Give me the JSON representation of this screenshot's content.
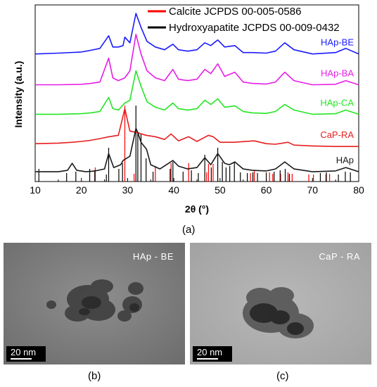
{
  "chart_data": {
    "type": "line",
    "xlabel": "2θ (°)",
    "ylabel": "Intensity (a.u.)",
    "xlim": [
      10,
      80
    ],
    "x_ticks": [
      "10",
      "20",
      "30",
      "40",
      "50",
      "60",
      "70",
      "80"
    ],
    "legend": {
      "placement": "top-right",
      "entries": [
        {
          "label": "Calcite JCPDS 00-005-0586",
          "color": "#ff0000"
        },
        {
          "label": "Hydroxyapatite JCPDS 00-009-0432",
          "color": "#000000"
        }
      ]
    },
    "series": [
      {
        "name": "HAp-BE",
        "color": "#1a1aff",
        "offset": 4,
        "x": [
          10,
          15,
          20,
          22,
          24,
          25.9,
          26.8,
          28,
          29,
          29.4,
          30.5,
          31.8,
          32.9,
          34.2,
          36,
          38,
          39.8,
          41,
          43,
          45,
          46.7,
          48,
          49.5,
          51,
          53.2,
          55,
          57,
          60,
          62,
          64,
          66,
          70,
          75,
          77.2,
          80
        ],
        "y": [
          0.35,
          0.38,
          0.42,
          0.48,
          0.55,
          1.0,
          0.6,
          0.6,
          0.65,
          0.95,
          0.75,
          1.8,
          1.3,
          0.8,
          0.6,
          0.5,
          0.7,
          0.5,
          0.45,
          0.5,
          0.75,
          0.65,
          0.85,
          0.6,
          0.65,
          0.4,
          0.4,
          0.38,
          0.45,
          0.75,
          0.5,
          0.35,
          0.4,
          0.55,
          0.35
        ]
      },
      {
        "name": "HAp-BA",
        "color": "#e61ee6",
        "offset": 3,
        "x": [
          10,
          15,
          20,
          22,
          24,
          25.9,
          26.8,
          28,
          29.4,
          30.5,
          31.8,
          32.9,
          34.2,
          36,
          38,
          39.8,
          41,
          43,
          45,
          46.7,
          48,
          49.5,
          51,
          53.2,
          55,
          57,
          60,
          62,
          64,
          66,
          70,
          75,
          77.2,
          80
        ],
        "y": [
          0.3,
          0.3,
          0.32,
          0.35,
          0.4,
          1.25,
          0.55,
          0.45,
          0.55,
          0.8,
          2.1,
          1.4,
          0.8,
          0.55,
          0.45,
          0.85,
          0.5,
          0.45,
          0.5,
          0.85,
          0.7,
          1.05,
          0.6,
          0.75,
          0.4,
          0.35,
          0.33,
          0.4,
          0.75,
          0.45,
          0.3,
          0.32,
          0.45,
          0.3
        ]
      },
      {
        "name": "HAp-CA",
        "color": "#22e622",
        "offset": 2,
        "x": [
          10,
          15,
          20,
          22,
          24,
          25.9,
          26.8,
          28,
          29.4,
          30.5,
          31.8,
          32.9,
          34.2,
          36,
          38,
          39.8,
          41,
          43,
          45,
          46.7,
          48,
          49.5,
          51,
          53.2,
          55,
          57,
          60,
          62,
          64,
          66,
          70,
          75,
          77.2,
          80
        ],
        "y": [
          0.3,
          0.3,
          0.32,
          0.35,
          0.4,
          0.9,
          0.5,
          0.45,
          0.7,
          0.8,
          1.85,
          1.3,
          0.75,
          0.55,
          0.45,
          0.7,
          0.5,
          0.45,
          0.5,
          0.8,
          0.65,
          0.85,
          0.55,
          0.6,
          0.4,
          0.35,
          0.33,
          0.4,
          0.65,
          0.45,
          0.3,
          0.32,
          0.45,
          0.3
        ]
      },
      {
        "name": "CaP-RA",
        "color": "#e61e1e",
        "offset": 1,
        "x": [
          10,
          15,
          18,
          20,
          22,
          24,
          26,
          28,
          29.4,
          30.5,
          32,
          34,
          36,
          38,
          39.4,
          41,
          43.2,
          45,
          47.5,
          48.5,
          50,
          53,
          57.4,
          60,
          62,
          64.7,
          66,
          70,
          75,
          80
        ],
        "y": [
          0.3,
          0.32,
          0.35,
          0.38,
          0.42,
          0.48,
          0.55,
          0.6,
          1.55,
          0.75,
          0.7,
          0.6,
          0.55,
          0.45,
          0.65,
          0.4,
          0.55,
          0.38,
          0.6,
          0.55,
          0.35,
          0.35,
          0.4,
          0.3,
          0.28,
          0.35,
          0.25,
          0.22,
          0.2,
          0.2
        ]
      },
      {
        "name": "HAp",
        "color": "#1a1a1a",
        "offset": 0,
        "x": [
          10,
          15,
          17,
          18,
          19,
          21,
          23,
          25,
          25.9,
          27,
          28.5,
          29,
          30.5,
          31.8,
          32.2,
          32.9,
          34.1,
          35,
          37,
          39.8,
          41,
          43,
          45,
          46.7,
          48,
          49.5,
          51,
          52,
          53.2,
          55,
          57,
          60,
          62,
          64,
          66,
          70,
          75,
          77.2,
          80
        ],
        "y": [
          0.35,
          0.35,
          0.4,
          0.65,
          0.4,
          0.35,
          0.38,
          0.45,
          1.0,
          0.5,
          0.6,
          0.75,
          0.9,
          1.9,
          1.75,
          1.4,
          1.15,
          0.6,
          0.45,
          0.75,
          0.55,
          0.45,
          0.5,
          0.85,
          0.6,
          1.0,
          0.65,
          0.6,
          0.7,
          0.45,
          0.4,
          0.38,
          0.45,
          0.7,
          0.45,
          0.35,
          0.38,
          0.5,
          0.35
        ]
      }
    ],
    "reference_lines": {
      "Calcite JCPDS 00-005-0586": {
        "color": "#ff0000",
        "x": [
          23.0,
          29.4,
          31.4,
          36.0,
          39.4,
          43.2,
          47.1,
          47.5,
          48.5,
          56.6,
          57.4,
          60.7,
          61.4,
          63.1,
          64.7,
          65.6,
          69.2,
          70.2,
          72.9,
          73.7
        ],
        "intensity": [
          0.12,
          1.0,
          0.03,
          0.14,
          0.18,
          0.18,
          0.05,
          0.17,
          0.17,
          0.04,
          0.08,
          0.05,
          0.03,
          0.03,
          0.05,
          0.03,
          0.02,
          0.02,
          0.02,
          0.03
        ]
      },
      "Hydroxyapatite JCPDS 00-009-0432": {
        "color": "#000000",
        "x": [
          10.8,
          16.8,
          18.8,
          21.8,
          22.9,
          25.4,
          25.9,
          28.1,
          28.9,
          31.8,
          32.2,
          32.9,
          34.0,
          35.5,
          39.2,
          39.8,
          42.0,
          43.8,
          45.3,
          46.7,
          48.1,
          49.5,
          50.5,
          51.3,
          52.1,
          53.1,
          54.4,
          55.9,
          57.1,
          58.1,
          60.0,
          61.7,
          63.0,
          64.1,
          65.0,
          71.7,
          73.0,
          75.6,
          77.1,
          78.2
        ],
        "intensity": [
          0.1,
          0.04,
          0.06,
          0.1,
          0.08,
          0.02,
          0.4,
          0.1,
          0.18,
          1.0,
          0.6,
          0.6,
          0.25,
          0.06,
          0.1,
          0.2,
          0.06,
          0.08,
          0.04,
          0.3,
          0.12,
          0.4,
          0.2,
          0.12,
          0.14,
          0.2,
          0.05,
          0.04,
          0.05,
          0.04,
          0.05,
          0.06,
          0.08,
          0.1,
          0.03,
          0.04,
          0.05,
          0.02,
          0.06,
          0.05
        ]
      }
    }
  },
  "panels": {
    "a": {
      "caption": "a"
    },
    "b": {
      "caption": "b",
      "image_label": "HAp - BE",
      "scale_bar": "20 nm"
    },
    "c": {
      "caption": "c",
      "image_label": "CaP - RA",
      "scale_bar": "20 nm"
    }
  }
}
